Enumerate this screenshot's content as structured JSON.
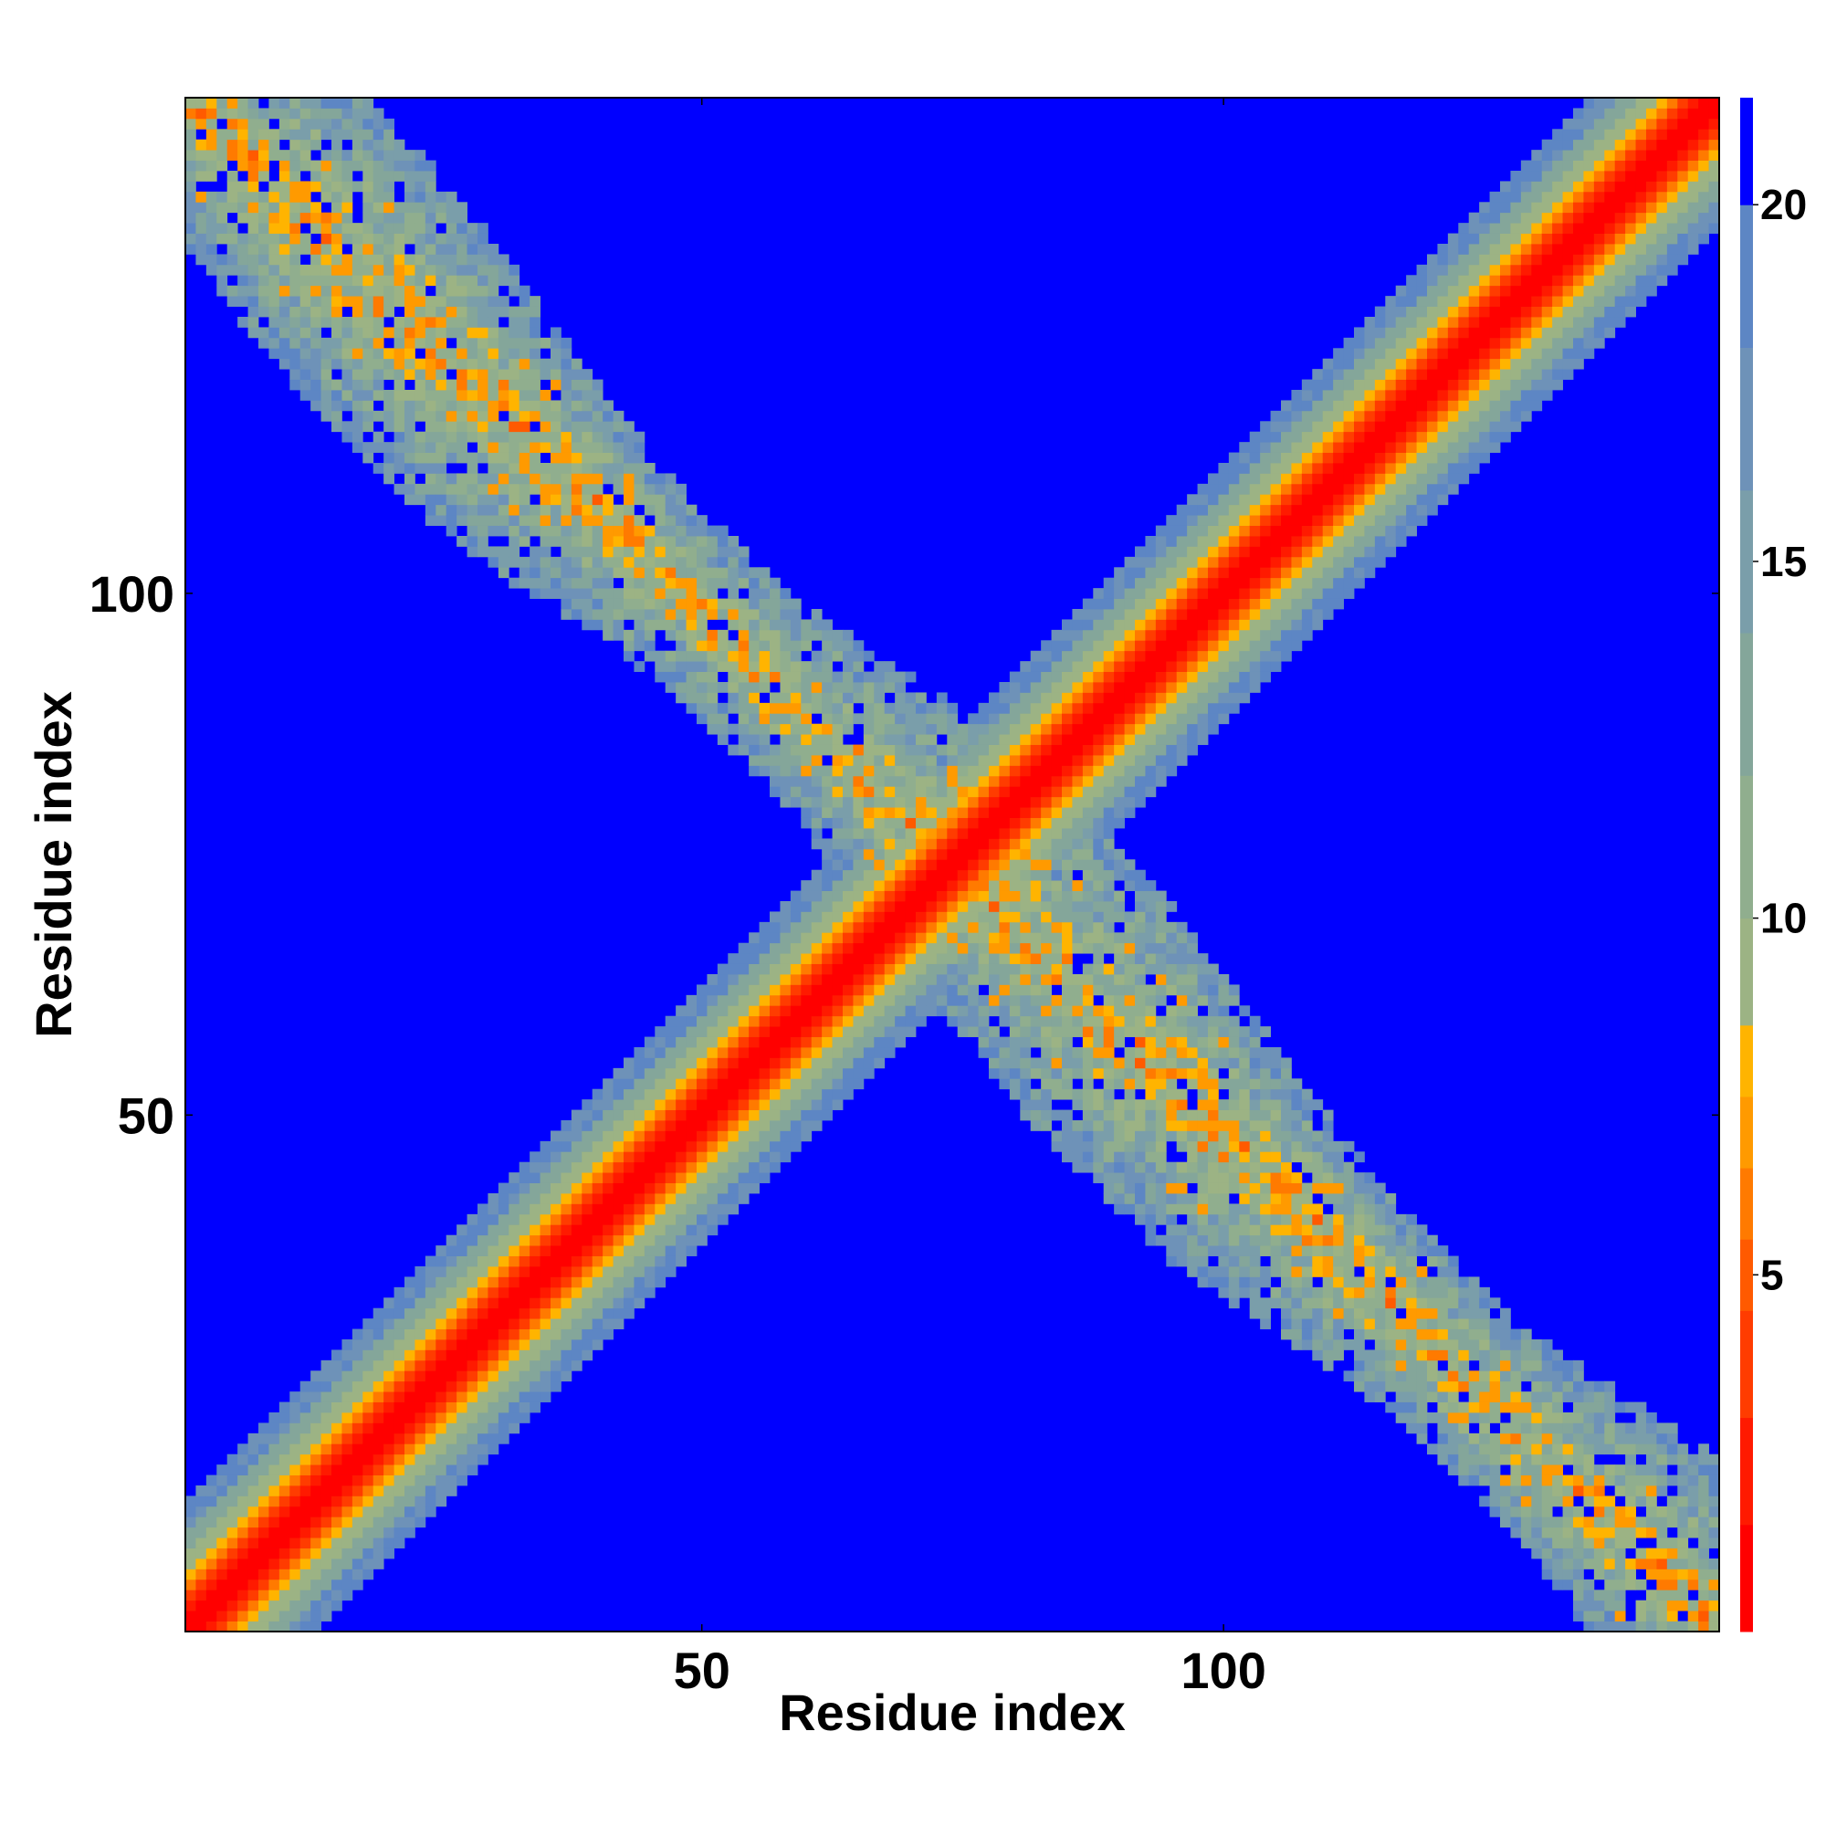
{
  "chart_data": {
    "type": "heatmap",
    "title": "",
    "xlabel": "Residue index",
    "ylabel": "Residue index",
    "n_residues": 147,
    "xlim": [
      1,
      147
    ],
    "ylim": [
      1,
      147
    ],
    "x_ticks": [
      50,
      100
    ],
    "y_ticks": [
      50,
      100
    ],
    "colorbar": {
      "ticks": [
        5,
        10,
        15,
        20
      ],
      "range": [
        0,
        21.5
      ],
      "levels": [
        {
          "lo": 0,
          "hi": 1.5,
          "color": "#ff0000"
        },
        {
          "lo": 1.5,
          "hi": 3.0,
          "color": "#ff1a00"
        },
        {
          "lo": 3.0,
          "hi": 4.5,
          "color": "#ff3c00"
        },
        {
          "lo": 4.5,
          "hi": 5.5,
          "color": "#ff5a00"
        },
        {
          "lo": 5.5,
          "hi": 6.5,
          "color": "#ff7a00"
        },
        {
          "lo": 6.5,
          "hi": 7.5,
          "color": "#ff9a00"
        },
        {
          "lo": 7.5,
          "hi": 8.5,
          "color": "#ffb400"
        },
        {
          "lo": 8.5,
          "hi": 10.0,
          "color": "#9cb384"
        },
        {
          "lo": 10.0,
          "hi": 12.0,
          "color": "#90ae8e"
        },
        {
          "lo": 12.0,
          "hi": 14.0,
          "color": "#84a69a"
        },
        {
          "lo": 14.0,
          "hi": 16.0,
          "color": "#7a9eaa"
        },
        {
          "lo": 16.0,
          "hi": 18.0,
          "color": "#6e92b8"
        },
        {
          "lo": 18.0,
          "hi": 20.0,
          "color": "#5d86c4"
        },
        {
          "lo": 20.0,
          "hi": 21.5,
          "color": "#0000ff"
        }
      ]
    },
    "description_of_structure": "Symmetric residue-residue distance map: red/orange main diagonal (distance < 8), diagonal lighter bands out to ~20, broad off-diagonal X-shaped contact band running from top-left to bottom-right, background (distance > 20) blue",
    "structure": {
      "diagonal_core_max_separation": 4,
      "diagonal_band_max_separation": 12,
      "cross_band_center_sum": 148,
      "cross_band_halfwidth": 14
    }
  },
  "colors": {
    "background": "#0000ff",
    "core": "#ff0000",
    "near": "#ff9a00",
    "band": "#6e92b8"
  }
}
